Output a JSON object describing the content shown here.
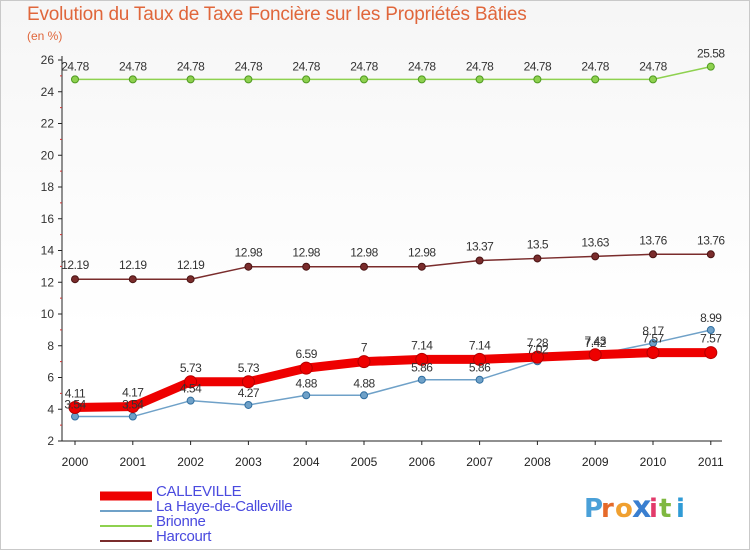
{
  "title": "Evolution du Taux de Taxe Foncière sur les Propriétés Bâties",
  "unit_label": "(en %)",
  "logo_text": "Proxiti",
  "chart_data": {
    "type": "line",
    "title": "Evolution du Taux de Taxe Foncière sur les Propriétés Bâties",
    "ylabel": "(en %)",
    "xlabel": "",
    "x": [
      "2000",
      "2001",
      "2002",
      "2003",
      "2004",
      "2005",
      "2006",
      "2007",
      "2008",
      "2009",
      "2010",
      "2011"
    ],
    "ylim": [
      2,
      26
    ],
    "yticks": [
      2,
      4,
      6,
      8,
      10,
      12,
      14,
      16,
      18,
      20,
      22,
      24,
      26
    ],
    "grid": false,
    "legend_position": "bottom-left",
    "series": [
      {
        "name": "CALLEVILLE",
        "color": "#ee0000",
        "values": [
          4.11,
          4.17,
          5.73,
          5.73,
          6.59,
          7,
          7.14,
          7.14,
          7.28,
          7.43,
          7.57,
          7.57
        ],
        "labels": [
          "4.11",
          "4.17",
          "5.73",
          "5.73",
          "6.59",
          "7",
          "7.14",
          "7.14",
          "7.28",
          "7.43",
          "7.57",
          "7.57"
        ]
      },
      {
        "name": "La Haye-de-Calleville",
        "color": "#6fa1c8",
        "values": [
          3.54,
          3.54,
          4.54,
          4.27,
          4.88,
          4.88,
          5.86,
          5.86,
          7.02,
          7.42,
          8.17,
          8.99
        ],
        "labels": [
          "3.54",
          "3.54",
          "4.54",
          "4.27",
          "4.88",
          "4.88",
          "5.86",
          "5.86",
          "7.02",
          "7.42",
          "8.17",
          "8.99"
        ]
      },
      {
        "name": "Brionne",
        "color": "#8ed14f",
        "values": [
          24.78,
          24.78,
          24.78,
          24.78,
          24.78,
          24.78,
          24.78,
          24.78,
          24.78,
          24.78,
          24.78,
          25.58
        ],
        "labels": [
          "24.78",
          "24.78",
          "24.78",
          "24.78",
          "24.78",
          "24.78",
          "24.78",
          "24.78",
          "24.78",
          "24.78",
          "24.78",
          "25.58"
        ]
      },
      {
        "name": "Harcourt",
        "color": "#7a2c2c",
        "values": [
          12.19,
          12.19,
          12.19,
          12.98,
          12.98,
          12.98,
          12.98,
          13.37,
          13.5,
          13.63,
          13.76,
          13.76
        ],
        "labels": [
          "12.19",
          "12.19",
          "12.19",
          "12.98",
          "12.98",
          "12.98",
          "12.98",
          "13.37",
          "13.5",
          "13.63",
          "13.76",
          "13.76"
        ]
      }
    ]
  }
}
